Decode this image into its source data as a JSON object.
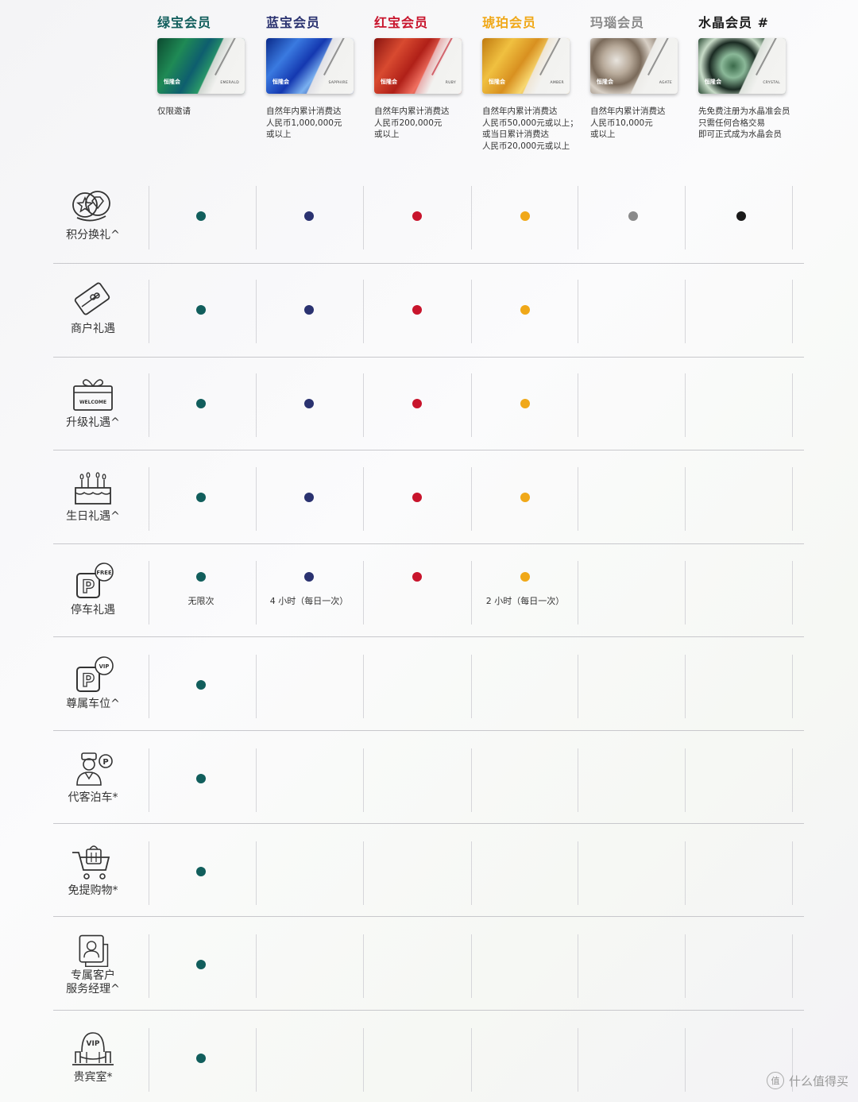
{
  "colors": {
    "emerald": "#115e5c",
    "sapphire": "#2a3270",
    "ruby": "#c8142c",
    "amber": "#f0a818",
    "agate": "#8a8a8a",
    "crystal": "#1a1a1a"
  },
  "tiers": [
    {
      "name": "绿宝会员",
      "card_code": "EMERALD",
      "logo": "恒隆会",
      "requirement": [
        "仅限邀请"
      ]
    },
    {
      "name": "蓝宝会员",
      "card_code": "SAPPHIRE",
      "logo": "恒隆会",
      "requirement": [
        "自然年内累计消费达",
        "人民币1,000,000元",
        "或以上"
      ]
    },
    {
      "name": "红宝会员",
      "card_code": "RUBY",
      "logo": "恒隆会",
      "requirement": [
        "自然年内累计消费达",
        "人民币200,000元",
        "或以上"
      ]
    },
    {
      "name": "琥珀会员",
      "card_code": "AMBER",
      "logo": "恒隆会",
      "requirement": [
        "自然年内累计消费达",
        "人民币50,000元或以上；",
        "或当日累计消费达",
        "人民币20,000元或以上"
      ]
    },
    {
      "name": "玛瑙会员",
      "card_code": "AGATE",
      "logo": "恒隆会",
      "requirement": [
        "自然年内累计消费达",
        "人民币10,000元",
        "或以上"
      ]
    },
    {
      "name": "水晶会员 #",
      "card_code": "CRYSTAL",
      "logo": "恒隆会",
      "requirement": [
        "先免费注册为水晶准会员",
        "只需任何合格交易",
        "即可正式成为水晶会员"
      ]
    }
  ],
  "benefits": [
    {
      "label": [
        "积分换礼^"
      ],
      "icon": "points-gift-icon",
      "tiers": [
        true,
        true,
        true,
        true,
        true,
        true
      ],
      "notes": [
        "",
        "",
        "",
        "",
        "",
        ""
      ]
    },
    {
      "label": [
        "商户礼遇"
      ],
      "icon": "merchant-card-icon",
      "tiers": [
        true,
        true,
        true,
        true,
        false,
        false
      ],
      "notes": [
        "",
        "",
        "",
        "",
        "",
        ""
      ]
    },
    {
      "label": [
        "升级礼遇^"
      ],
      "icon": "welcome-gift-icon",
      "welcome_text": "WELCOME",
      "tiers": [
        true,
        true,
        true,
        true,
        false,
        false
      ],
      "notes": [
        "",
        "",
        "",
        "",
        "",
        ""
      ]
    },
    {
      "label": [
        "生日礼遇^"
      ],
      "icon": "birthday-cake-icon",
      "tiers": [
        true,
        true,
        true,
        true,
        false,
        false
      ],
      "notes": [
        "",
        "",
        "",
        "",
        "",
        ""
      ]
    },
    {
      "label": [
        "停车礼遇"
      ],
      "icon": "free-parking-icon",
      "badge": "FREE",
      "tiers": [
        true,
        true,
        true,
        true,
        false,
        false
      ],
      "notes": [
        "无限次",
        "4 小时（每日一次）",
        "",
        "2 小时（每日一次）",
        "",
        ""
      ]
    },
    {
      "label": [
        "尊属车位^"
      ],
      "icon": "vip-parking-icon",
      "badge": "VIP",
      "tiers": [
        true,
        false,
        false,
        false,
        false,
        false
      ],
      "notes": [
        "",
        "",
        "",
        "",
        "",
        ""
      ]
    },
    {
      "label": [
        "代客泊车*"
      ],
      "icon": "valet-parking-icon",
      "tiers": [
        true,
        false,
        false,
        false,
        false,
        false
      ],
      "notes": [
        "",
        "",
        "",
        "",
        "",
        ""
      ]
    },
    {
      "label": [
        "免提购物*"
      ],
      "icon": "shopping-cart-icon",
      "tiers": [
        true,
        false,
        false,
        false,
        false,
        false
      ],
      "notes": [
        "",
        "",
        "",
        "",
        "",
        ""
      ]
    },
    {
      "label": [
        "专属客户",
        "服务经理^"
      ],
      "icon": "service-manager-icon",
      "tiers": [
        true,
        false,
        false,
        false,
        false,
        false
      ],
      "notes": [
        "",
        "",
        "",
        "",
        "",
        ""
      ]
    },
    {
      "label": [
        "贵宾室*"
      ],
      "icon": "vip-lounge-icon",
      "badge": "VIP",
      "tiers": [
        true,
        false,
        false,
        false,
        false,
        false
      ],
      "notes": [
        "",
        "",
        "",
        "",
        "",
        ""
      ]
    }
  ],
  "watermark": {
    "logo": "值",
    "text": "什么值得买"
  }
}
